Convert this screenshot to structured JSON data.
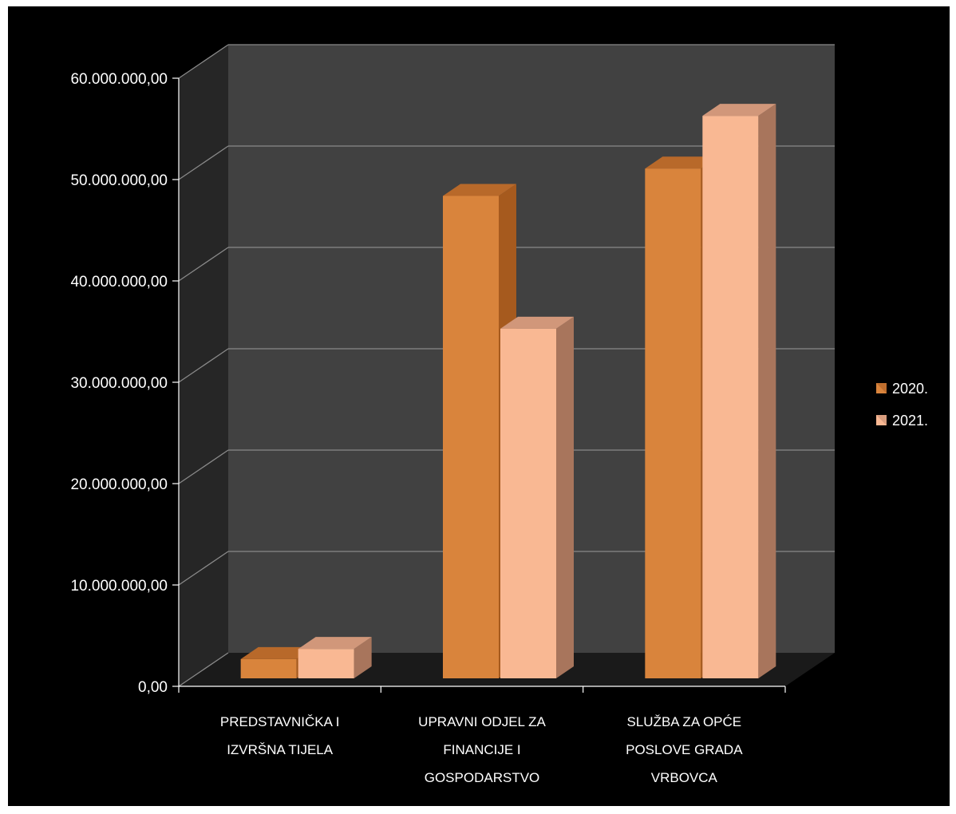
{
  "chart_data": {
    "type": "bar",
    "title": "",
    "xlabel": "",
    "ylabel": "",
    "categories": [
      [
        "PREDSTAVNIČKA I",
        "IZVRŠNA TIJELA"
      ],
      [
        "UPRAVNI ODJEL ZA",
        "FINANCIJE I",
        "GOSPODARSTVO"
      ],
      [
        "SLUŽBA ZA OPĆE",
        "POSLOVE GRADA",
        "VRBOVCA"
      ]
    ],
    "series": [
      {
        "name": "2020.",
        "values": [
          1900000,
          47600000,
          50300000
        ],
        "color": "#d9843c",
        "side_color": "#a65a1e",
        "top_color": "#b8692a"
      },
      {
        "name": "2021.",
        "values": [
          2900000,
          34500000,
          55500000
        ],
        "color": "#f9b893",
        "side_color": "#a8755c",
        "top_color": "#d1977a"
      }
    ],
    "ylim": [
      0,
      60000000
    ],
    "yticks": [
      "0,00",
      "10.000.000,00",
      "20.000.000,00",
      "30.000.000,00",
      "40.000.000,00",
      "50.000.000,00",
      "60.000.000,00"
    ],
    "ytick_values": [
      0,
      10000000,
      20000000,
      30000000,
      40000000,
      50000000,
      60000000
    ],
    "grid": true,
    "legend_position": "right",
    "style": "3d-clustered-column"
  }
}
